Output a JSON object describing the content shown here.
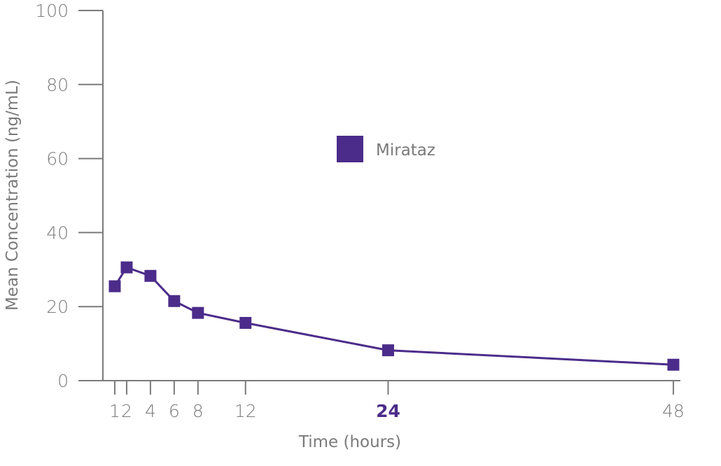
{
  "chart_data": {
    "type": "line",
    "title": "",
    "xlabel": "Time (hours)",
    "ylabel": "Mean Concentration (ng/mL)",
    "x": [
      1,
      2,
      4,
      6,
      8,
      12,
      24,
      48
    ],
    "x_tick_labels": [
      "1",
      "2",
      "4",
      "6",
      "8",
      "12",
      "24",
      "48"
    ],
    "highlighted_x_tick": "24",
    "y_ticks": [
      0,
      20,
      40,
      60,
      80,
      100
    ],
    "y_tick_labels": [
      "0",
      "20",
      "40",
      "60",
      "80",
      "100"
    ],
    "ylim": [
      0,
      100
    ],
    "series": [
      {
        "name": "Mirataz",
        "color": "#4b2c8a",
        "marker": "square",
        "values": [
          25.5,
          30.6,
          28.3,
          21.5,
          18.3,
          15.6,
          8.2,
          4.3
        ]
      }
    ],
    "legend_position": "upper-center",
    "grid": false,
    "colors": {
      "series": "#4b2c8a",
      "axis": "#7a7a7a",
      "highlight": "#4b2c8a"
    }
  }
}
